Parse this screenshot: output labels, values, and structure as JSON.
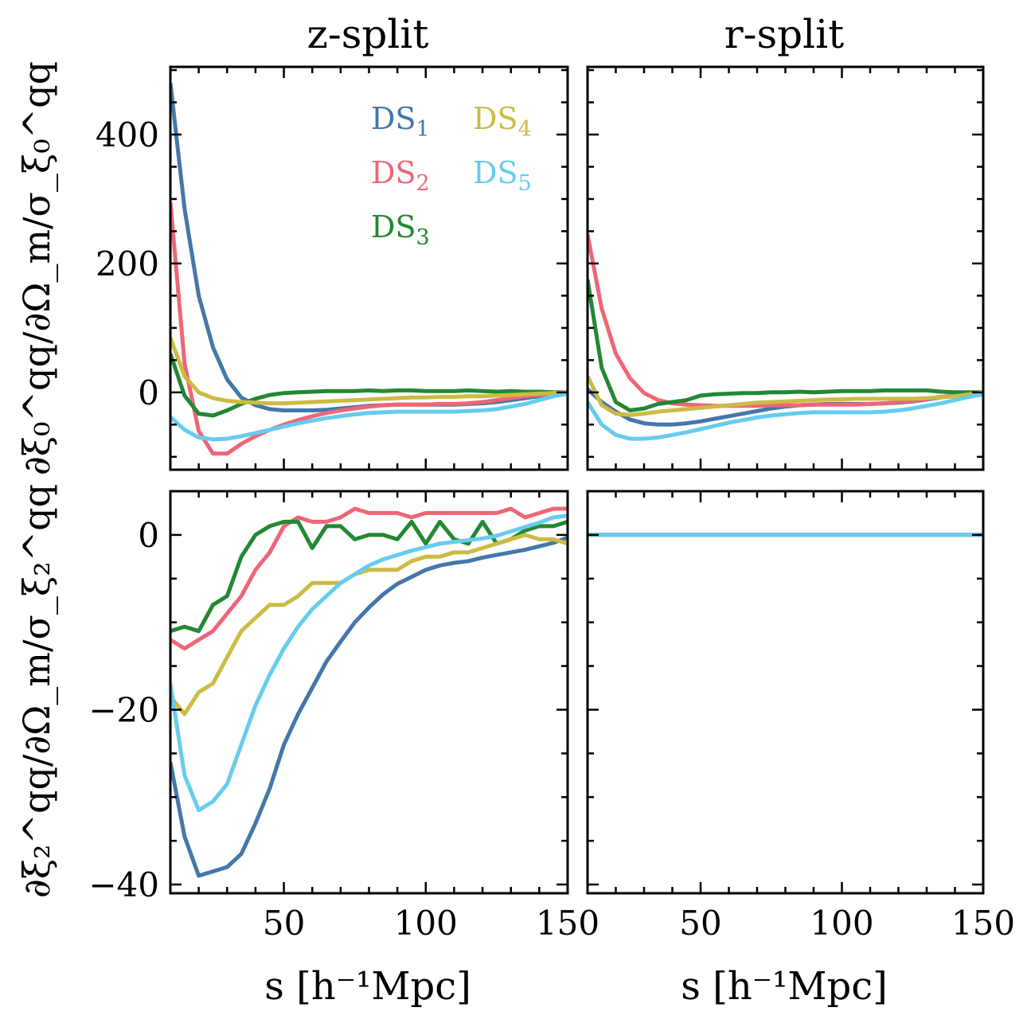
{
  "chart_data": {
    "type": "line",
    "layout": "2x2 grid, shared x-axis per column, shared y-axis per row",
    "column_titles": [
      "z-split",
      "r-split"
    ],
    "row_ylabels": [
      "∂ξ₀^qq/∂Ω_m/σ_ξ₀^qq",
      "∂ξ₂^qq/∂Ω_m/σ_ξ₂^qq"
    ],
    "xlabel": "s [h⁻¹Mpc]",
    "xlim": [
      10,
      150
    ],
    "x_ticks": [
      50,
      100,
      150
    ],
    "x_tick_labels": [
      "50",
      "100",
      "150"
    ],
    "x": [
      10,
      15,
      20,
      25,
      30,
      35,
      40,
      45,
      50,
      55,
      60,
      65,
      70,
      75,
      80,
      85,
      90,
      95,
      100,
      105,
      110,
      115,
      120,
      125,
      130,
      135,
      140,
      145,
      150
    ],
    "series_names": [
      "DS1",
      "DS2",
      "DS3",
      "DS4",
      "DS5"
    ],
    "series_colors": [
      "#4477aa",
      "#ee6677",
      "#228833",
      "#ccbb44",
      "#66ccee"
    ],
    "legend": {
      "location": "upper-right of top-left panel",
      "entries": [
        {
          "base": "DS",
          "sub": "1"
        },
        {
          "base": "DS",
          "sub": "2"
        },
        {
          "base": "DS",
          "sub": "3"
        },
        {
          "base": "DS",
          "sub": "4"
        },
        {
          "base": "DS",
          "sub": "5"
        }
      ]
    },
    "panels": [
      {
        "id": "z-split-xi0",
        "ylim": [
          -120,
          505
        ],
        "y_ticks": [
          0,
          200,
          400
        ],
        "y_tick_labels": [
          "0",
          "200",
          "400"
        ],
        "series": [
          {
            "name": "DS1",
            "values": [
              480,
              285,
              150,
              70,
              20,
              -8,
              -20,
              -26,
              -28,
              -28,
              -28,
              -27,
              -25,
              -23,
              -21,
              -20,
              -19,
              -19,
              -19,
              -19,
              -19,
              -18,
              -17,
              -15,
              -12,
              -9,
              -6,
              -3,
              0
            ]
          },
          {
            "name": "DS2",
            "values": [
              295,
              45,
              -60,
              -95,
              -95,
              -80,
              -68,
              -58,
              -50,
              -43,
              -37,
              -32,
              -28,
              -25,
              -22,
              -20,
              -19,
              -19,
              -19,
              -18,
              -18,
              -17,
              -15,
              -12,
              -9,
              -6,
              -4,
              -2,
              0
            ]
          },
          {
            "name": "DS3",
            "values": [
              60,
              -5,
              -33,
              -36,
              -28,
              -18,
              -10,
              -4,
              -1,
              0,
              1,
              2,
              2,
              2,
              3,
              2,
              3,
              3,
              2,
              2,
              2,
              3,
              2,
              1,
              2,
              1,
              1,
              0,
              0
            ]
          },
          {
            "name": "DS4",
            "values": [
              85,
              25,
              0,
              -9,
              -13,
              -15,
              -16,
              -17,
              -17,
              -16,
              -15,
              -14,
              -13,
              -12,
              -11,
              -10,
              -9,
              -8,
              -8,
              -7,
              -7,
              -6,
              -6,
              -5,
              -4,
              -3,
              -2,
              -1,
              0
            ]
          },
          {
            "name": "DS5",
            "values": [
              -38,
              -58,
              -70,
              -73,
              -72,
              -68,
              -63,
              -58,
              -53,
              -48,
              -44,
              -40,
              -37,
              -34,
              -32,
              -31,
              -30,
              -30,
              -30,
              -30,
              -30,
              -29,
              -28,
              -26,
              -22,
              -18,
              -12,
              -6,
              -2
            ]
          }
        ]
      },
      {
        "id": "r-split-xi0",
        "ylim": [
          -120,
          505
        ],
        "y_ticks": [
          0,
          200,
          400
        ],
        "y_tick_labels": [
          "",
          "",
          ""
        ],
        "series": [
          {
            "name": "DS1",
            "values": [
              5,
              -15,
              -30,
              -42,
              -48,
              -50,
              -50,
              -48,
              -45,
              -41,
              -37,
              -33,
              -29,
              -25,
              -22,
              -20,
              -19,
              -18,
              -18,
              -18,
              -18,
              -17,
              -16,
              -14,
              -11,
              -8,
              -5,
              -3,
              0
            ]
          },
          {
            "name": "DS2",
            "values": [
              245,
              130,
              60,
              22,
              -1,
              -12,
              -17,
              -19,
              -20,
              -21,
              -21,
              -21,
              -21,
              -20,
              -20,
              -20,
              -19,
              -19,
              -19,
              -19,
              -18,
              -17,
              -15,
              -13,
              -10,
              -7,
              -5,
              -3,
              0
            ]
          },
          {
            "name": "DS3",
            "values": [
              175,
              38,
              -15,
              -28,
              -25,
              -18,
              -15,
              -12,
              -5,
              -3,
              -2,
              -1,
              -1,
              0,
              0,
              1,
              0,
              1,
              2,
              2,
              2,
              3,
              3,
              3,
              3,
              1,
              0,
              0,
              0
            ]
          },
          {
            "name": "DS4",
            "values": [
              25,
              -20,
              -33,
              -35,
              -33,
              -30,
              -28,
              -26,
              -24,
              -22,
              -20,
              -18,
              -16,
              -15,
              -14,
              -13,
              -12,
              -11,
              -11,
              -10,
              -10,
              -10,
              -10,
              -10,
              -9,
              -8,
              -6,
              -3,
              0
            ]
          },
          {
            "name": "DS5",
            "values": [
              -15,
              -50,
              -66,
              -72,
              -72,
              -70,
              -66,
              -62,
              -57,
              -52,
              -47,
              -43,
              -39,
              -36,
              -34,
              -32,
              -31,
              -31,
              -31,
              -31,
              -31,
              -30,
              -28,
              -25,
              -21,
              -17,
              -12,
              -7,
              -3
            ]
          }
        ]
      },
      {
        "id": "z-split-xi2",
        "ylim": [
          -41,
          5
        ],
        "y_ticks": [
          -40,
          -20,
          0
        ],
        "y_tick_labels": [
          "−40",
          "−20",
          "0"
        ],
        "series": [
          {
            "name": "DS1",
            "values": [
              -26,
              -34.5,
              -39,
              -38.5,
              -38,
              -36.5,
              -33,
              -29,
              -24,
              -20.5,
              -17.5,
              -14.5,
              -12.2,
              -10,
              -8.3,
              -6.8,
              -5.6,
              -4.8,
              -4,
              -3.5,
              -3.2,
              -3,
              -2.6,
              -2.3,
              -2,
              -1.7,
              -1.3,
              -0.9,
              -0.3
            ]
          },
          {
            "name": "DS2",
            "values": [
              -12,
              -13,
              -12,
              -11,
              -9,
              -7,
              -4,
              -2,
              1,
              2,
              1.5,
              1.5,
              2,
              3,
              2.5,
              2.5,
              2.5,
              2,
              2.5,
              2.5,
              2.5,
              2.5,
              2.5,
              2.5,
              3,
              2,
              2.5,
              3,
              3
            ]
          },
          {
            "name": "DS3",
            "values": [
              -11,
              -10.5,
              -11,
              -8,
              -7,
              -2.5,
              0,
              1,
              1.5,
              1.5,
              -1.5,
              1,
              1,
              -0.5,
              0,
              0,
              -0.5,
              1.5,
              -1,
              1.5,
              -0.5,
              -1,
              1.5,
              -1,
              -0.5,
              0.5,
              1,
              1,
              1.5
            ]
          },
          {
            "name": "DS4",
            "values": [
              -18.5,
              -20.5,
              -18,
              -17,
              -14,
              -11,
              -9.5,
              -8,
              -8,
              -7,
              -5.5,
              -5.5,
              -5.5,
              -4.5,
              -4,
              -4,
              -4,
              -3,
              -2.5,
              -2.5,
              -2,
              -2,
              -1.5,
              -1,
              -0.5,
              0,
              -0.5,
              -0.5,
              -1
            ]
          },
          {
            "name": "DS5",
            "values": [
              -17,
              -27.5,
              -31.5,
              -30.5,
              -28.5,
              -24,
              -19.5,
              -16,
              -13,
              -10.5,
              -8.5,
              -7,
              -5.5,
              -4.5,
              -3.5,
              -2.8,
              -2.3,
              -1.8,
              -1.4,
              -1,
              -0.8,
              -0.6,
              -0.4,
              -0.1,
              0.4,
              0.9,
              1.4,
              2,
              2.2
            ]
          }
        ]
      },
      {
        "id": "r-split-xi2",
        "ylim": [
          -41,
          5
        ],
        "y_ticks": [
          -40,
          -20,
          0
        ],
        "y_tick_labels": [
          "",
          "",
          ""
        ],
        "series": [
          {
            "name": "DS1",
            "values": [
              0,
              0,
              0,
              0,
              0,
              0,
              0,
              0,
              0,
              0,
              0,
              0,
              0,
              0,
              0,
              0,
              0,
              0,
              0,
              0,
              0,
              0,
              0,
              0,
              0,
              0,
              0,
              0,
              0
            ]
          },
          {
            "name": "DS2",
            "values": [
              0,
              0,
              0,
              0,
              0,
              0,
              0,
              0,
              0,
              0,
              0,
              0,
              0,
              0,
              0,
              0,
              0,
              0,
              0,
              0,
              0,
              0,
              0,
              0,
              0,
              0,
              0,
              0,
              0
            ]
          },
          {
            "name": "DS3",
            "values": [
              0,
              0,
              0,
              0,
              0,
              0,
              0,
              0,
              0,
              0,
              0,
              0,
              0,
              0,
              0,
              0,
              0,
              0,
              0,
              0,
              0,
              0,
              0,
              0,
              0,
              0,
              0,
              0,
              0
            ]
          },
          {
            "name": "DS4",
            "values": [
              0,
              0,
              0,
              0,
              0,
              0,
              0,
              0,
              0,
              0,
              0,
              0,
              0,
              0,
              0,
              0,
              0,
              0,
              0,
              0,
              0,
              0,
              0,
              0,
              0,
              0,
              0,
              0,
              0
            ]
          },
          {
            "name": "DS5",
            "values": [
              0,
              0,
              0,
              0,
              0,
              0,
              0,
              0,
              0,
              0,
              0,
              0,
              0,
              0,
              0,
              0,
              0,
              0,
              0,
              0,
              0,
              0,
              0,
              0,
              0,
              0,
              0,
              0,
              0
            ]
          }
        ]
      }
    ]
  }
}
